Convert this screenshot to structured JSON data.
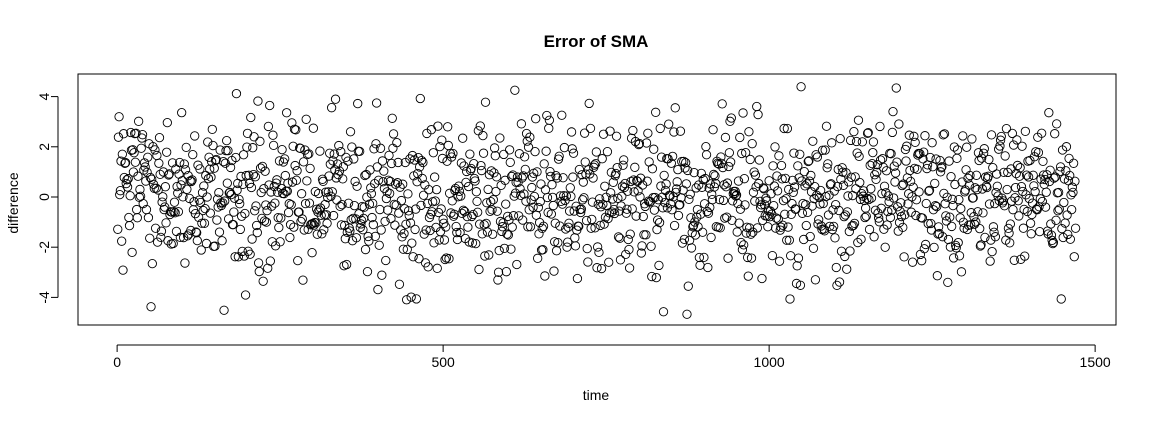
{
  "chart_data": {
    "type": "scatter",
    "title": "Error of SMA",
    "xlabel": "time",
    "ylabel": "difference",
    "xlim": [
      -60,
      1532
    ],
    "ylim": [
      -5.1,
      4.9
    ],
    "x_ticks": [
      0,
      500,
      1000,
      1500
    ],
    "x_tick_labels": [
      "0",
      "500",
      "1000",
      "1500"
    ],
    "y_ticks": [
      -4,
      -2,
      0,
      2,
      4
    ],
    "y_tick_labels": [
      "-4",
      "-2",
      "0",
      "2",
      "4"
    ],
    "grid": false,
    "legend": "none",
    "marker": "open-circle",
    "series": [
      {
        "x_start": 1,
        "x_end": 1470,
        "n_points": 1470,
        "mean": 0,
        "sd": 1.5,
        "approx_range": [
          -4.7,
          4.45
        ]
      }
    ]
  }
}
